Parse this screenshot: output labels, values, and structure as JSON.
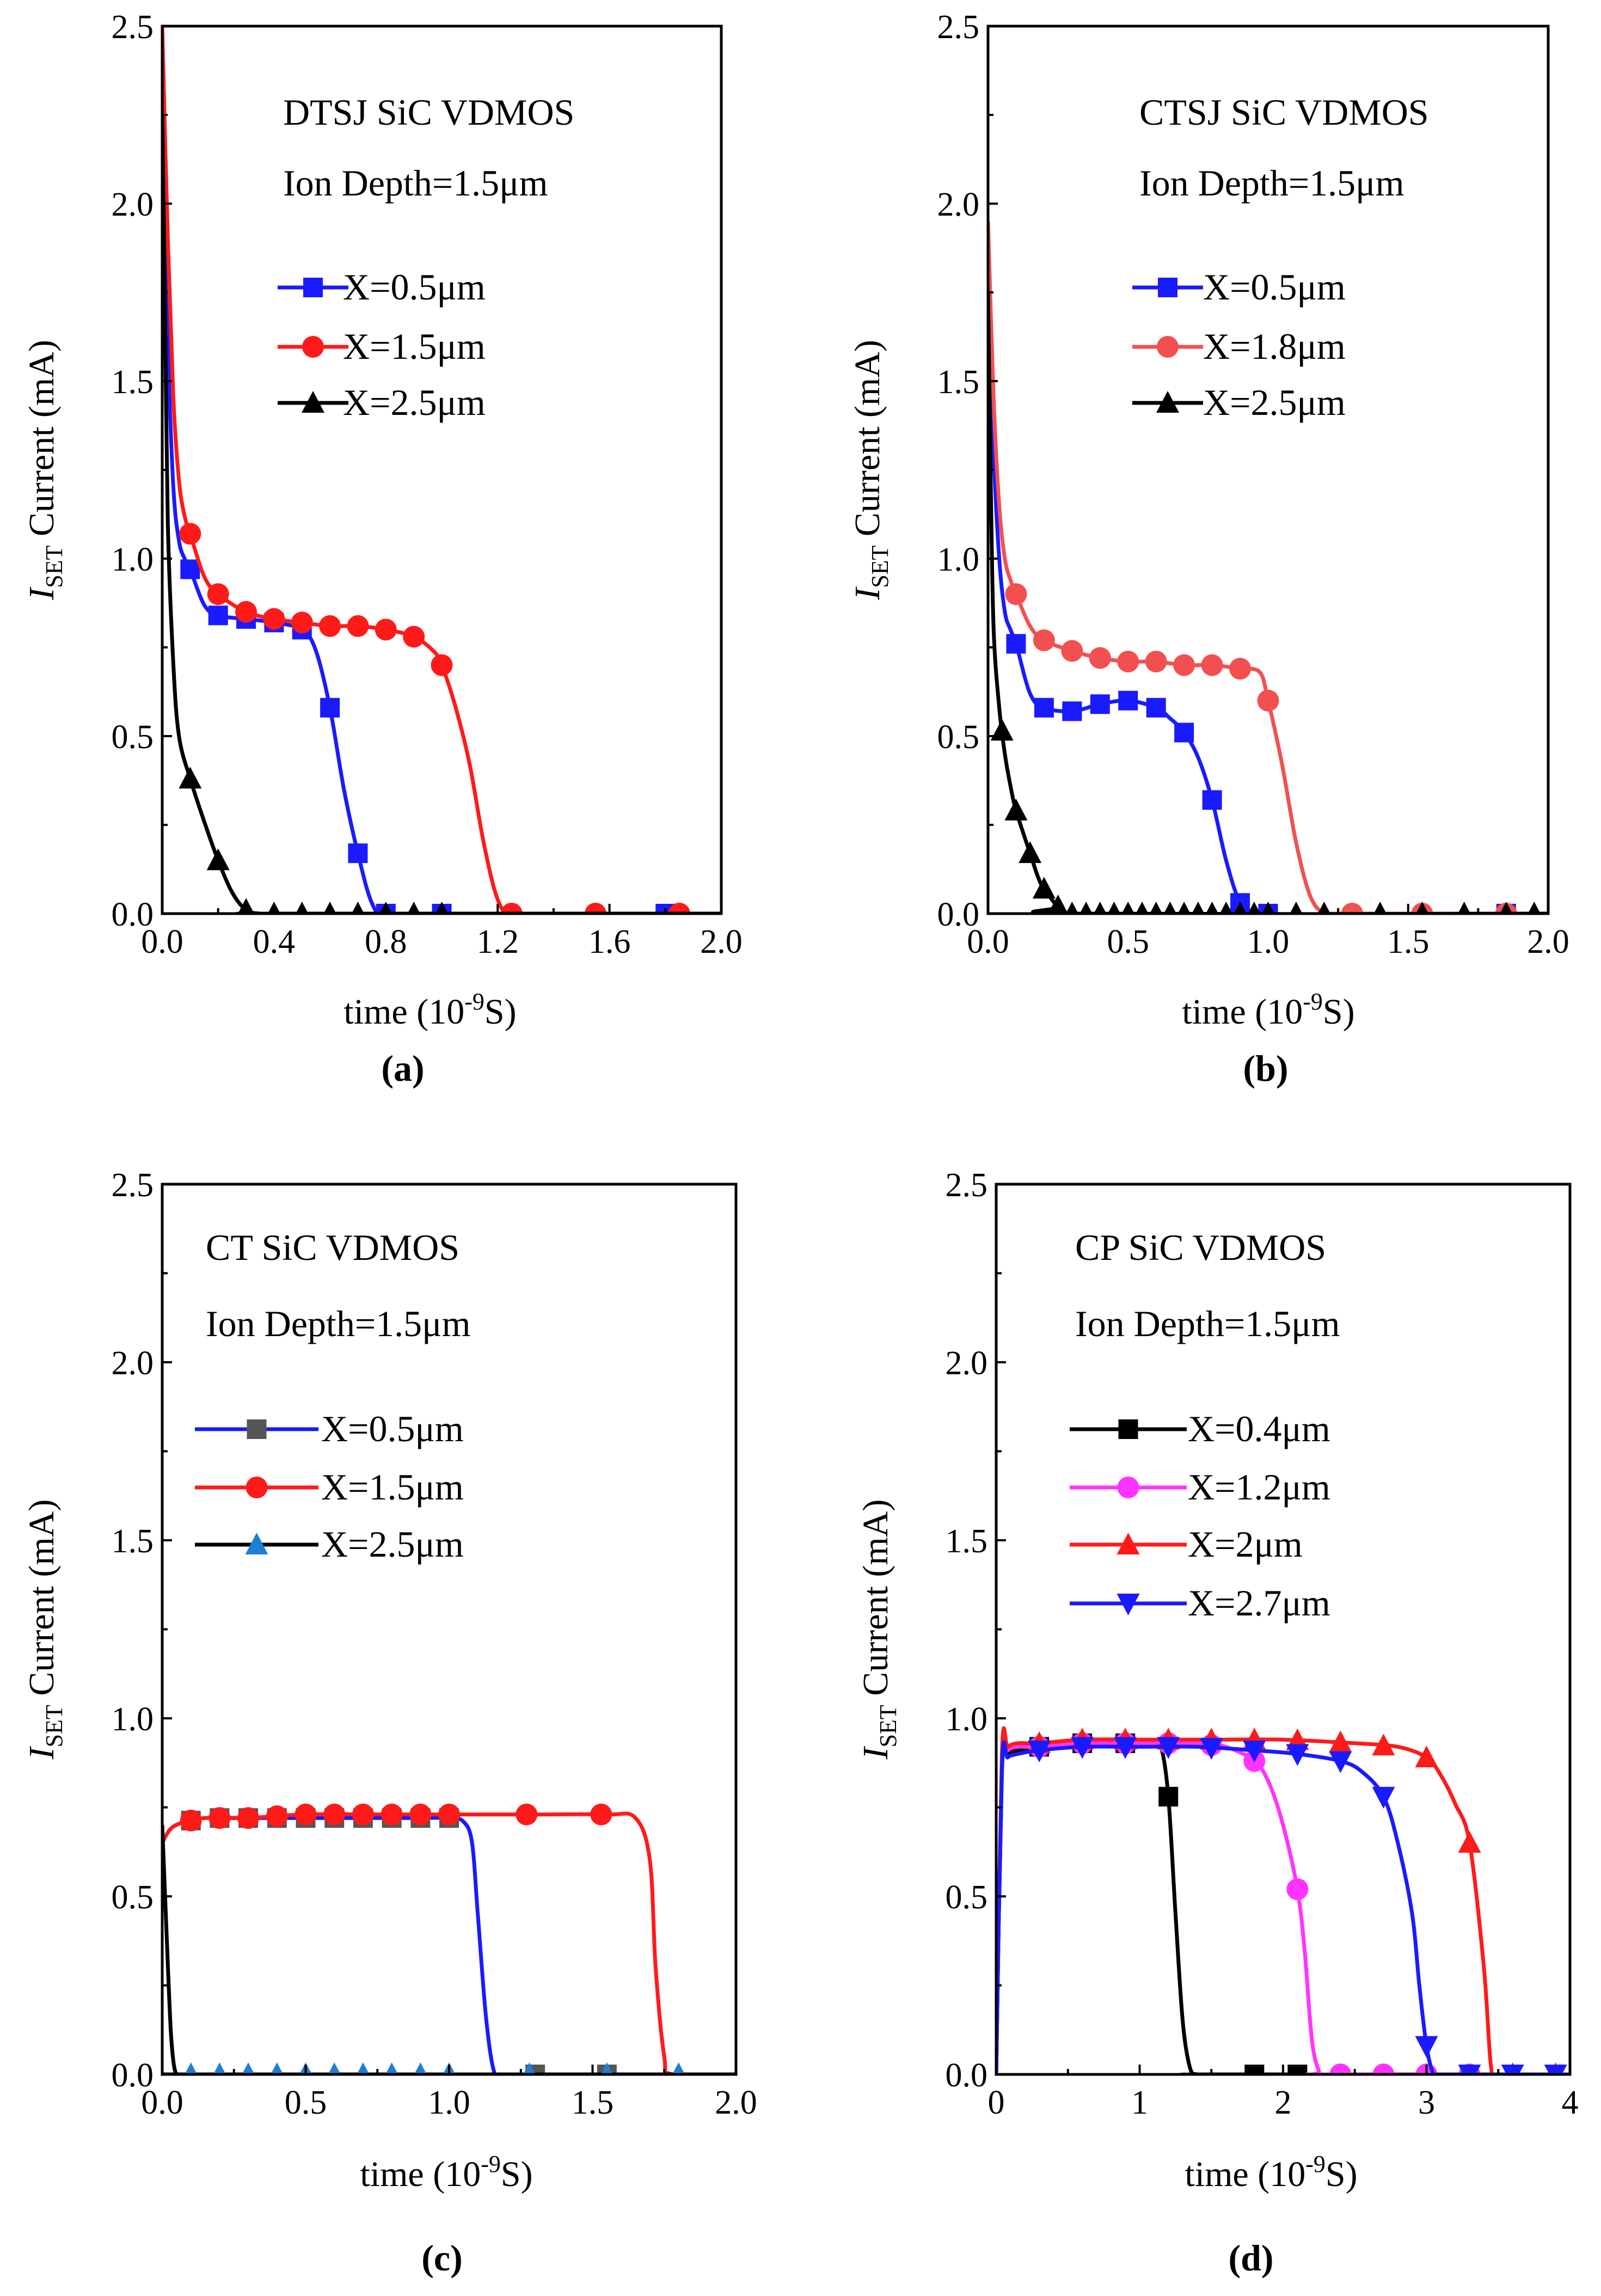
{
  "chart_data": [
    {
      "type": "line",
      "panel": "(a)",
      "title": "DTSJ SiC VDMOS",
      "subtitle": "Ion Depth=1.5μm",
      "xlabel": "time (10",
      "xlabel_sup": "-9",
      "xlabel_tail": "S)",
      "ylabel_base": "I",
      "ylabel_sub": "SET",
      "ylabel_tail": " Current (mA)",
      "xlim": [
        0,
        2.0
      ],
      "ylim": [
        0,
        2.5
      ],
      "xticks": [
        "0.0",
        "0.4",
        "0.8",
        "1.2",
        "1.6",
        "2.0"
      ],
      "yticks": [
        "0.0",
        "0.5",
        "1.0",
        "1.5",
        "2.0",
        "2.5"
      ],
      "legend_position": "upper-right",
      "series": [
        {
          "name": "X=0.5μm",
          "color": "#1a1aff",
          "marker": "square",
          "x": [
            0,
            0.02,
            0.04,
            0.06,
            0.08,
            0.1,
            0.15,
            0.2,
            0.3,
            0.4,
            0.5,
            0.55,
            0.6,
            0.65,
            0.7,
            0.75,
            0.8,
            1.0,
            1.6,
            2.0
          ],
          "y": [
            2.25,
            1.6,
            1.2,
            1.05,
            1.0,
            0.97,
            0.87,
            0.84,
            0.83,
            0.82,
            0.8,
            0.74,
            0.58,
            0.35,
            0.17,
            0.03,
            0.0,
            0.0,
            0.0,
            0.0
          ],
          "markers_x": [
            0.1,
            0.2,
            0.3,
            0.4,
            0.5,
            0.6,
            0.7,
            0.8,
            1.0,
            1.8
          ]
        },
        {
          "name": "X=1.5μm",
          "color": "#ff1a1a",
          "marker": "circle",
          "x": [
            0,
            0.02,
            0.04,
            0.06,
            0.08,
            0.1,
            0.15,
            0.2,
            0.3,
            0.4,
            0.5,
            0.6,
            0.7,
            0.8,
            0.9,
            0.97,
            1.0,
            1.05,
            1.1,
            1.15,
            1.2,
            1.25,
            1.4,
            1.6,
            1.8,
            2.0
          ],
          "y": [
            2.5,
            1.9,
            1.45,
            1.22,
            1.12,
            1.07,
            0.95,
            0.9,
            0.85,
            0.83,
            0.82,
            0.81,
            0.81,
            0.8,
            0.78,
            0.74,
            0.7,
            0.58,
            0.42,
            0.2,
            0.04,
            0.0,
            0.0,
            0.0,
            0.0,
            0.0
          ],
          "markers_x": [
            0.1,
            0.2,
            0.3,
            0.4,
            0.5,
            0.6,
            0.7,
            0.8,
            0.9,
            1.0,
            1.25,
            1.55,
            1.85
          ]
        },
        {
          "name": "X=2.5μm",
          "color": "#000000",
          "marker": "triangle-up",
          "x": [
            0,
            0.01,
            0.02,
            0.04,
            0.06,
            0.1,
            0.15,
            0.2,
            0.25,
            0.3,
            0.35,
            0.4,
            2.0
          ],
          "y": [
            2.25,
            1.7,
            1.1,
            0.7,
            0.5,
            0.38,
            0.26,
            0.15,
            0.06,
            0.01,
            0.0,
            0.0,
            0.0
          ],
          "markers_x": [
            0.1,
            0.2,
            0.3,
            0.4,
            0.5,
            0.6,
            0.7,
            0.8,
            0.9,
            1.0
          ]
        }
      ]
    },
    {
      "type": "line",
      "panel": "(b)",
      "title": "CTSJ  SiC VDMOS",
      "subtitle": "Ion Depth=1.5μm",
      "xlabel": "time (10",
      "xlabel_sup": "-9",
      "xlabel_tail": "S)",
      "ylabel_base": "I",
      "ylabel_sub": "SET",
      "ylabel_tail": " Current (mA)",
      "xlim": [
        0,
        2.0
      ],
      "ylim": [
        0,
        2.5
      ],
      "xticks": [
        "0.0",
        "0.5",
        "1.0",
        "1.5",
        "2.0"
      ],
      "yticks": [
        "0.0",
        "0.5",
        "1.0",
        "1.5",
        "2.0",
        "2.5"
      ],
      "legend_position": "upper-right",
      "series": [
        {
          "name": "X=0.5μm",
          "color": "#1a1aff",
          "marker": "square",
          "x": [
            0,
            0.02,
            0.04,
            0.06,
            0.08,
            0.1,
            0.15,
            0.2,
            0.3,
            0.4,
            0.5,
            0.6,
            0.65,
            0.7,
            0.75,
            0.8,
            0.85,
            0.9,
            0.95,
            2.0
          ],
          "y": [
            1.8,
            1.3,
            1.0,
            0.85,
            0.8,
            0.76,
            0.62,
            0.58,
            0.57,
            0.59,
            0.6,
            0.58,
            0.55,
            0.51,
            0.44,
            0.32,
            0.15,
            0.03,
            0.0,
            0.0
          ],
          "markers_x": [
            0.1,
            0.2,
            0.3,
            0.4,
            0.5,
            0.6,
            0.7,
            0.8,
            0.9,
            1.0,
            1.85
          ]
        },
        {
          "name": "X=1.8μm",
          "color": "#f25050",
          "marker": "circle",
          "x": [
            0,
            0.02,
            0.04,
            0.06,
            0.08,
            0.1,
            0.15,
            0.2,
            0.3,
            0.4,
            0.5,
            0.6,
            0.7,
            0.8,
            0.9,
            0.97,
            1.0,
            1.05,
            1.1,
            1.15,
            1.2,
            1.25,
            2.0
          ],
          "y": [
            1.95,
            1.45,
            1.15,
            1.0,
            0.94,
            0.9,
            0.81,
            0.77,
            0.74,
            0.72,
            0.71,
            0.71,
            0.7,
            0.7,
            0.69,
            0.68,
            0.6,
            0.42,
            0.2,
            0.05,
            0.0,
            0.0,
            0.0
          ],
          "markers_x": [
            0.1,
            0.2,
            0.3,
            0.4,
            0.5,
            0.6,
            0.7,
            0.8,
            0.9,
            1.0,
            1.3,
            1.55,
            1.85
          ]
        },
        {
          "name": "X=2.5μm",
          "color": "#000000",
          "marker": "triangle-up",
          "x": [
            0,
            0.01,
            0.02,
            0.04,
            0.06,
            0.08,
            0.1,
            0.15,
            0.18,
            0.2,
            0.25,
            0.3,
            2.0
          ],
          "y": [
            1.75,
            1.2,
            0.8,
            0.58,
            0.45,
            0.36,
            0.29,
            0.17,
            0.1,
            0.07,
            0.02,
            0.0,
            0.0
          ],
          "markers_x": [
            0.05,
            0.1,
            0.15,
            0.2,
            0.25,
            0.3,
            0.35,
            0.4,
            0.45,
            0.5,
            0.55,
            0.6,
            0.65,
            0.7,
            0.75,
            0.8,
            0.85,
            0.9,
            0.95,
            1.0,
            1.1,
            1.2,
            1.4,
            1.55,
            1.7,
            1.85,
            1.95
          ]
        }
      ]
    },
    {
      "type": "line",
      "panel": "(c)",
      "title": "CT SiC VDMOS",
      "subtitle": "Ion Depth=1.5μm",
      "xlabel": "time (10",
      "xlabel_sup": "-9",
      "xlabel_tail": "S)",
      "ylabel_base": "I",
      "ylabel_sub": "SET",
      "ylabel_tail": " Current (mA)",
      "xlim": [
        0,
        2.0
      ],
      "ylim": [
        0,
        2.5
      ],
      "xticks": [
        "0.0",
        "0.5",
        "1.0",
        "1.5",
        "2.0"
      ],
      "yticks": [
        "0.0",
        "0.5",
        "1.0",
        "1.5",
        "2.0",
        "2.5"
      ],
      "legend_position": "upper-left",
      "series": [
        {
          "name": "X=0.5μm",
          "color": "#1a1aff",
          "marker": "square",
          "marker_color": "#555555",
          "x": [
            0,
            0.03,
            0.08,
            0.15,
            0.3,
            0.5,
            0.7,
            0.9,
            1.0,
            1.05,
            1.08,
            1.1,
            1.13,
            1.16,
            1.2,
            2.0
          ],
          "y": [
            0.65,
            0.69,
            0.71,
            0.72,
            0.72,
            0.72,
            0.72,
            0.72,
            0.72,
            0.71,
            0.65,
            0.45,
            0.15,
            0.0,
            0.0,
            0.0
          ],
          "markers_x": [
            0.1,
            0.2,
            0.3,
            0.4,
            0.5,
            0.6,
            0.7,
            0.8,
            0.9,
            1.0,
            1.3,
            1.55
          ]
        },
        {
          "name": "X=1.5μm",
          "color": "#ff1a1a",
          "marker": "circle",
          "x": [
            0,
            0.03,
            0.08,
            0.15,
            0.3,
            0.5,
            0.8,
            1.0,
            1.3,
            1.55,
            1.65,
            1.7,
            1.72,
            1.75,
            1.78,
            2.0
          ],
          "y": [
            0.65,
            0.69,
            0.71,
            0.72,
            0.72,
            0.73,
            0.73,
            0.73,
            0.73,
            0.73,
            0.72,
            0.6,
            0.3,
            0.05,
            0.0,
            0.0
          ],
          "markers_x": [
            0.1,
            0.2,
            0.3,
            0.4,
            0.5,
            0.6,
            0.7,
            0.8,
            0.9,
            1.0,
            1.27,
            1.53
          ]
        },
        {
          "name": "X=2.5μm",
          "color": "#000000",
          "marker": "triangle-up",
          "marker_color": "#1e7fd6",
          "x": [
            0,
            0.01,
            0.02,
            0.03,
            0.04,
            0.05,
            0.06,
            2.0
          ],
          "y": [
            0.7,
            0.5,
            0.3,
            0.12,
            0.03,
            0.0,
            0.0,
            0.0
          ],
          "markers_x": [
            0.1,
            0.2,
            0.3,
            0.4,
            0.5,
            0.6,
            0.7,
            0.8,
            0.9,
            1.0,
            1.28,
            1.55,
            1.8
          ]
        }
      ]
    },
    {
      "type": "line",
      "panel": "(d)",
      "title": "CP SiC VDMOS",
      "subtitle": "Ion Depth=1.5μm",
      "xlabel": "time (10",
      "xlabel_sup": "-9",
      "xlabel_tail": "S)",
      "ylabel_base": "I",
      "ylabel_sub": "SET",
      "ylabel_tail": " Current  (mA)",
      "xlim": [
        0,
        4
      ],
      "ylim": [
        0,
        2.5
      ],
      "xticks": [
        "0",
        "1",
        "2",
        "3",
        "4"
      ],
      "yticks": [
        "0.0",
        "0.5",
        "1.0",
        "1.5",
        "2.0",
        "2.5"
      ],
      "legend_position": "upper-left",
      "series": [
        {
          "name": "X=0.4μm",
          "color": "#000000",
          "marker": "square",
          "x": [
            0,
            0.04,
            0.08,
            0.15,
            0.3,
            0.6,
            0.9,
            1.1,
            1.15,
            1.2,
            1.25,
            1.3,
            1.35,
            1.4,
            1.5,
            4.0
          ],
          "y": [
            0.0,
            0.85,
            0.9,
            0.91,
            0.92,
            0.93,
            0.93,
            0.93,
            0.92,
            0.78,
            0.45,
            0.15,
            0.02,
            0.0,
            0.0,
            0.0
          ],
          "markers_x": [
            0.3,
            0.6,
            0.9,
            1.2,
            1.8,
            2.1
          ]
        },
        {
          "name": "X=1.2μm",
          "color": "#ff33ff",
          "marker": "circle",
          "x": [
            0,
            0.04,
            0.08,
            0.15,
            0.3,
            0.6,
            1.0,
            1.4,
            1.6,
            1.8,
            1.9,
            2.0,
            2.1,
            2.15,
            2.2,
            2.25,
            2.3,
            4.0
          ],
          "y": [
            0.0,
            0.88,
            0.91,
            0.92,
            0.92,
            0.93,
            0.93,
            0.93,
            0.92,
            0.88,
            0.82,
            0.7,
            0.52,
            0.35,
            0.1,
            0.01,
            0.0,
            0.0
          ],
          "markers_x": [
            0.3,
            0.6,
            0.9,
            1.2,
            1.5,
            1.8,
            2.1,
            2.4,
            2.7,
            3.0,
            3.3
          ]
        },
        {
          "name": "X=2μm",
          "color": "#ff1a1a",
          "marker": "triangle-up",
          "x": [
            0,
            0.04,
            0.08,
            0.15,
            0.3,
            0.6,
            1.0,
            1.5,
            2.0,
            2.5,
            2.8,
            3.0,
            3.1,
            3.2,
            3.3,
            3.4,
            3.45,
            3.5,
            4.0
          ],
          "y": [
            0.0,
            0.9,
            0.92,
            0.93,
            0.93,
            0.94,
            0.94,
            0.94,
            0.94,
            0.93,
            0.92,
            0.89,
            0.84,
            0.76,
            0.65,
            0.3,
            0.02,
            0.0,
            0.0
          ],
          "markers_x": [
            0.3,
            0.6,
            0.9,
            1.2,
            1.5,
            1.8,
            2.1,
            2.4,
            2.7,
            3.0,
            3.3,
            3.6,
            3.9
          ]
        },
        {
          "name": "X=2.7μm",
          "color": "#1a1aff",
          "marker": "triangle-down",
          "x": [
            0,
            0.04,
            0.08,
            0.15,
            0.3,
            0.6,
            1.0,
            1.4,
            1.8,
            2.1,
            2.4,
            2.55,
            2.7,
            2.8,
            2.9,
            2.95,
            3.0,
            3.05,
            3.1,
            4.0
          ],
          "y": [
            0.0,
            0.86,
            0.89,
            0.9,
            0.91,
            0.92,
            0.92,
            0.92,
            0.91,
            0.9,
            0.88,
            0.85,
            0.78,
            0.65,
            0.45,
            0.25,
            0.08,
            0.0,
            0.0,
            0.0
          ],
          "markers_x": [
            0.3,
            0.6,
            0.9,
            1.2,
            1.5,
            1.8,
            2.1,
            2.4,
            2.7,
            3.0,
            3.3,
            3.6,
            3.9
          ]
        }
      ]
    }
  ]
}
